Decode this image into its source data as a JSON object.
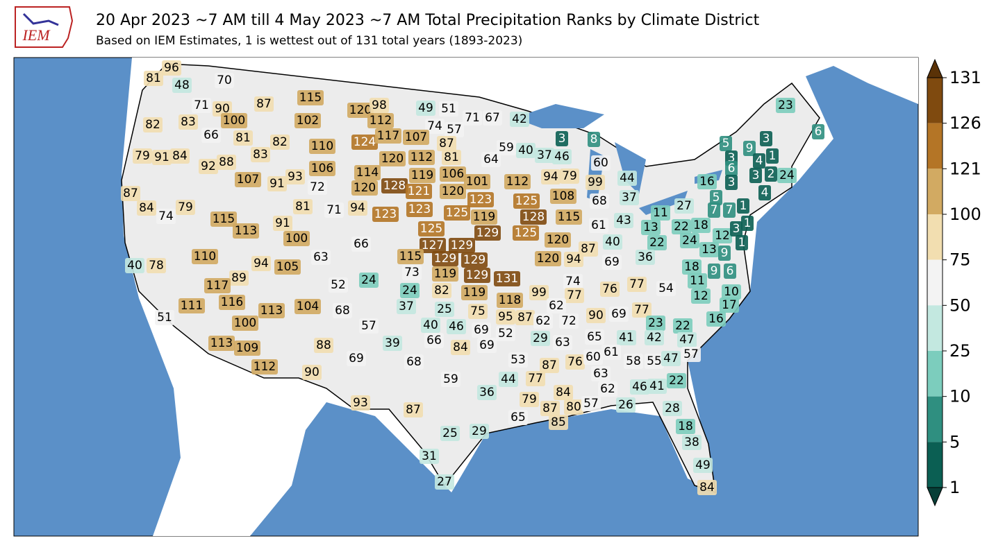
{
  "title": "20 Apr 2023 ~7 AM till 4 May 2023 ~7 AM Total Precipitation Ranks by Climate District",
  "subtitle": "Based on IEM Estimates, 1 is wettest out of 131 total years (1893-2023)",
  "logo": "IEM",
  "colorbar": {
    "ticks": [
      131,
      126,
      121,
      100,
      75,
      50,
      25,
      10,
      5,
      1
    ],
    "colors": [
      "#7f4a0f",
      "#b47526",
      "#d2aa62",
      "#f2deb0",
      "#f3f3f3",
      "#c3e8e0",
      "#7ccdbd",
      "#2f8f80",
      "#0b5f53"
    ],
    "extend_colors": [
      "#5a3207",
      "#073f37"
    ]
  },
  "district_ranks": [
    96,
    81,
    48,
    70,
    71,
    90,
    87,
    115,
    120,
    98,
    49,
    51,
    71,
    67,
    42,
    23,
    82,
    83,
    100,
    102,
    112,
    74,
    57,
    6,
    66,
    81,
    82,
    110,
    124,
    117,
    107,
    87,
    3,
    8,
    3,
    79,
    91,
    84,
    83,
    92,
    88,
    120,
    112,
    81,
    59,
    40,
    37,
    46,
    5,
    9,
    3,
    1,
    4,
    106,
    114,
    119,
    106,
    64,
    60,
    6,
    3,
    2,
    24,
    107,
    91,
    93,
    72,
    120,
    128,
    121,
    120,
    101,
    112,
    94,
    79,
    99,
    44,
    16,
    3,
    87,
    84,
    79,
    74,
    81,
    71,
    94,
    123,
    123,
    125,
    123,
    125,
    108,
    68,
    37,
    5,
    27,
    4,
    115,
    113,
    91,
    119,
    128,
    115,
    61,
    43,
    11,
    13,
    22,
    18,
    7,
    7,
    1,
    1,
    100,
    125,
    129,
    125,
    120,
    40,
    22,
    24,
    12,
    3,
    1,
    66,
    63,
    127,
    129,
    87,
    36,
    13,
    9,
    110,
    94,
    105,
    40,
    78,
    115,
    129,
    129,
    120,
    94,
    69,
    18,
    6,
    89,
    117,
    52,
    24,
    73,
    119,
    129,
    131,
    74,
    77,
    9,
    11,
    54,
    116,
    113,
    104,
    111,
    24,
    82,
    119,
    77,
    76,
    12,
    10,
    68,
    37,
    25,
    75,
    118,
    99,
    62,
    90,
    69,
    77,
    17,
    51,
    100,
    57,
    40,
    46,
    69,
    95,
    87,
    62,
    72,
    23,
    22,
    16,
    113,
    109,
    88,
    39,
    66,
    84,
    69,
    52,
    29,
    63,
    65,
    41,
    42,
    47,
    112,
    69,
    68,
    53,
    87,
    76,
    60,
    61,
    58,
    55,
    47,
    57,
    90,
    59,
    44,
    77,
    63,
    22,
    93,
    87,
    36,
    79,
    84,
    62,
    46,
    41,
    87,
    80,
    57,
    26,
    28,
    65,
    85,
    25,
    29,
    18,
    31,
    38,
    49,
    27,
    84
  ]
}
